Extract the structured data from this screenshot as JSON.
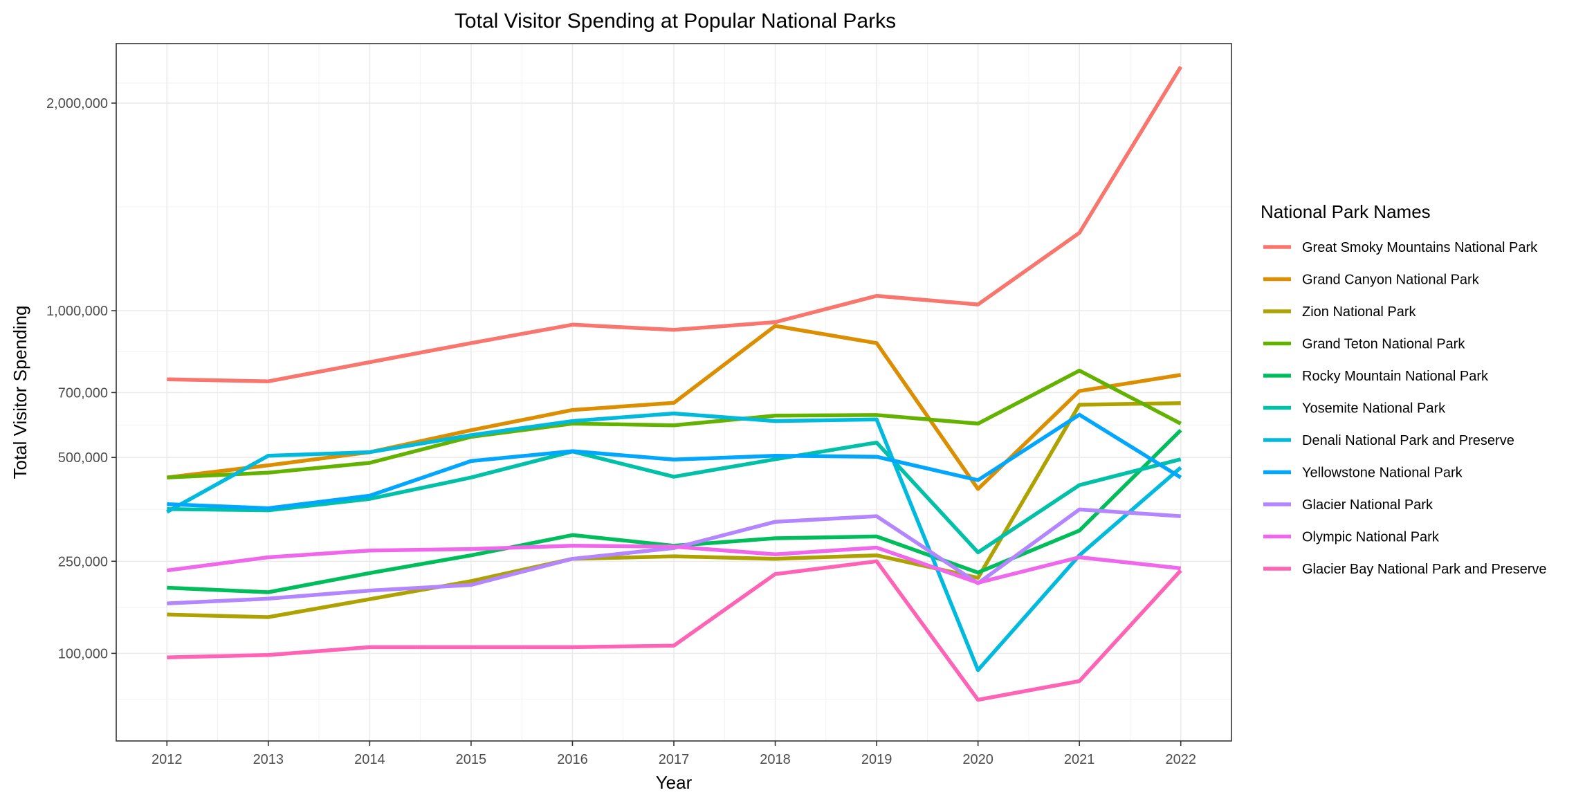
{
  "chart_data": {
    "type": "line",
    "title": "Total Visitor Spending at Popular National Parks",
    "xlabel": "Year",
    "ylabel": "Total Visitor Spending",
    "x": [
      2012,
      2013,
      2014,
      2015,
      2016,
      2017,
      2018,
      2019,
      2020,
      2021,
      2022
    ],
    "x_tick_labels": [
      "2012",
      "2013",
      "2014",
      "2015",
      "2016",
      "2017",
      "2018",
      "2019",
      "2020",
      "2021",
      "2022"
    ],
    "y_scale": "sqrt",
    "y_ticks": [
      100000,
      250000,
      500000,
      700000,
      1000000,
      2000000
    ],
    "y_tick_labels": [
      "100,000",
      "250,000",
      "500,000",
      "700,000",
      "1,000,000",
      "2,000,000"
    ],
    "ylim": [
      20000,
      2350000
    ],
    "grid": true,
    "legend_title": "National Park Names",
    "legend_position": "right",
    "series": [
      {
        "name": "Great Smoky Mountains National Park",
        "color": "#F8766D",
        "values": [
          745000,
          738000,
          805000,
          875000,
          945000,
          925000,
          955000,
          1060000,
          1025000,
          1335000,
          2210000
        ]
      },
      {
        "name": "Grand Canyon National Park",
        "color": "#DB8E00",
        "values": [
          445000,
          478000,
          515000,
          580000,
          643000,
          666000,
          940000,
          875000,
          415000,
          705000,
          760000
        ]
      },
      {
        "name": "Zion National Park",
        "color": "#AEA200",
        "values": [
          155000,
          151000,
          180000,
          212000,
          255000,
          260000,
          255000,
          262000,
          218000,
          660000,
          665000
        ]
      },
      {
        "name": "Grand Teton National Park",
        "color": "#64B200",
        "values": [
          445000,
          458000,
          485000,
          560000,
          600000,
          595000,
          625000,
          627000,
          600000,
          775000,
          600000
        ]
      },
      {
        "name": "Rocky Mountain National Park",
        "color": "#00BD5C",
        "values": [
          200000,
          192000,
          227000,
          262000,
          305000,
          282000,
          298000,
          302000,
          228000,
          315000,
          580000
        ]
      },
      {
        "name": "Yosemite National Park",
        "color": "#00C1A7",
        "values": [
          365000,
          362000,
          390000,
          445000,
          517000,
          447000,
          495000,
          543000,
          268000,
          425000,
          495000
        ]
      },
      {
        "name": "Denali National Park and Preserve",
        "color": "#00BADE",
        "values": [
          358000,
          505000,
          515000,
          565000,
          608000,
          632000,
          608000,
          613000,
          80000,
          262000,
          472000
        ]
      },
      {
        "name": "Yellowstone National Park",
        "color": "#00A6FF",
        "values": [
          377000,
          367000,
          398000,
          490000,
          518000,
          494000,
          505000,
          502000,
          438000,
          628000,
          445000
        ]
      },
      {
        "name": "Glacier National Park",
        "color": "#B385FF",
        "values": [
          173000,
          181000,
          195000,
          205000,
          255000,
          277000,
          335000,
          348000,
          208000,
          364000,
          348000
        ]
      },
      {
        "name": "Olympic National Park",
        "color": "#EF67EB",
        "values": [
          232000,
          258000,
          272000,
          275000,
          282000,
          280000,
          264000,
          278000,
          209000,
          258000,
          236000
        ]
      },
      {
        "name": "Glacier Bay National Park and Preserve",
        "color": "#FF63B6",
        "values": [
          95000,
          98000,
          108000,
          108000,
          108000,
          110000,
          225000,
          250000,
          50000,
          68000,
          232000
        ]
      }
    ]
  }
}
